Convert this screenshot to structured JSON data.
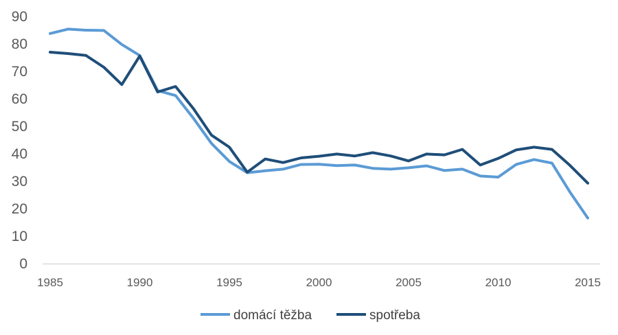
{
  "chart_data": {
    "type": "line",
    "title": "",
    "xlabel": "",
    "ylabel": "",
    "x": [
      1985,
      1986,
      1987,
      1988,
      1989,
      1990,
      1991,
      1992,
      1993,
      1994,
      1995,
      1996,
      1997,
      1998,
      1999,
      2000,
      2001,
      2002,
      2003,
      2004,
      2005,
      2006,
      2007,
      2008,
      2009,
      2010,
      2011,
      2012,
      2013,
      2014,
      2015
    ],
    "xlim": [
      1985,
      2016
    ],
    "ylim": [
      0,
      90
    ],
    "x_ticks": [
      "1985",
      "1990",
      "1995",
      "2000",
      "2005",
      "2010",
      "2015"
    ],
    "y_ticks": [
      "0",
      "10",
      "20",
      "30",
      "40",
      "50",
      "60",
      "70",
      "80",
      "90"
    ],
    "grid": false,
    "legend_position": "bottom",
    "series": [
      {
        "name": "domácí těžba",
        "color": "#5b9bd5",
        "values": [
          83.8,
          85.4,
          85.0,
          84.9,
          79.8,
          75.8,
          63.0,
          61.2,
          52.9,
          43.8,
          37.2,
          33.1,
          33.8,
          34.4,
          36.1,
          36.2,
          35.7,
          35.9,
          34.7,
          34.4,
          34.9,
          35.6,
          33.9,
          34.4,
          31.9,
          31.5,
          36.1,
          37.9,
          36.6,
          26.1,
          16.6
        ]
      },
      {
        "name": "spotřeba",
        "color": "#1f4e79",
        "values": [
          77.0,
          76.5,
          75.8,
          71.5,
          65.2,
          75.6,
          62.5,
          64.5,
          56.4,
          46.8,
          42.4,
          33.3,
          38.1,
          36.8,
          38.5,
          39.1,
          39.9,
          39.2,
          40.4,
          39.2,
          37.4,
          39.9,
          39.6,
          41.6,
          35.9,
          38.3,
          41.4,
          42.4,
          41.6,
          35.8,
          29.3
        ]
      }
    ]
  }
}
